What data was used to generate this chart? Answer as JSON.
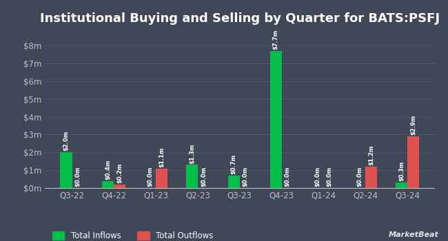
{
  "title": "Institutional Buying and Selling by Quarter for BATS:PSFJ",
  "quarters": [
    "Q3-22",
    "Q4-22",
    "Q1-23",
    "Q2-23",
    "Q3-23",
    "Q4-23",
    "Q1-24",
    "Q2-24",
    "Q3-24"
  ],
  "inflows": [
    2.0,
    0.4,
    0.0,
    1.3,
    0.7,
    7.7,
    0.0,
    0.0,
    0.3
  ],
  "outflows": [
    0.0,
    0.2,
    1.1,
    0.0,
    0.0,
    0.0,
    0.0,
    1.2,
    2.9
  ],
  "inflow_labels": [
    "$2.0m",
    "$0.4m",
    "$0.0m",
    "$1.3m",
    "$0.7m",
    "$7.7m",
    "$0.0m",
    "$0.0m",
    "$0.3m"
  ],
  "outflow_labels": [
    "$0.0m",
    "$0.2m",
    "$1.1m",
    "$0.0m",
    "$0.0m",
    "$0.0m",
    "$0.0m",
    "$1.2m",
    "$2.9m"
  ],
  "inflow_color": "#00c04b",
  "outflow_color": "#e05252",
  "background_color": "#404757",
  "grid_color": "#515769",
  "text_color": "#ffffff",
  "axis_label_color": "#c0c0c0",
  "ylim": [
    0,
    8.8
  ],
  "yticks": [
    0,
    1,
    2,
    3,
    4,
    5,
    6,
    7,
    8
  ],
  "bar_width": 0.28,
  "legend_labels": [
    "Total Inflows",
    "Total Outflows"
  ],
  "title_fontsize": 13,
  "tick_fontsize": 8.5,
  "label_fontsize": 6.0
}
